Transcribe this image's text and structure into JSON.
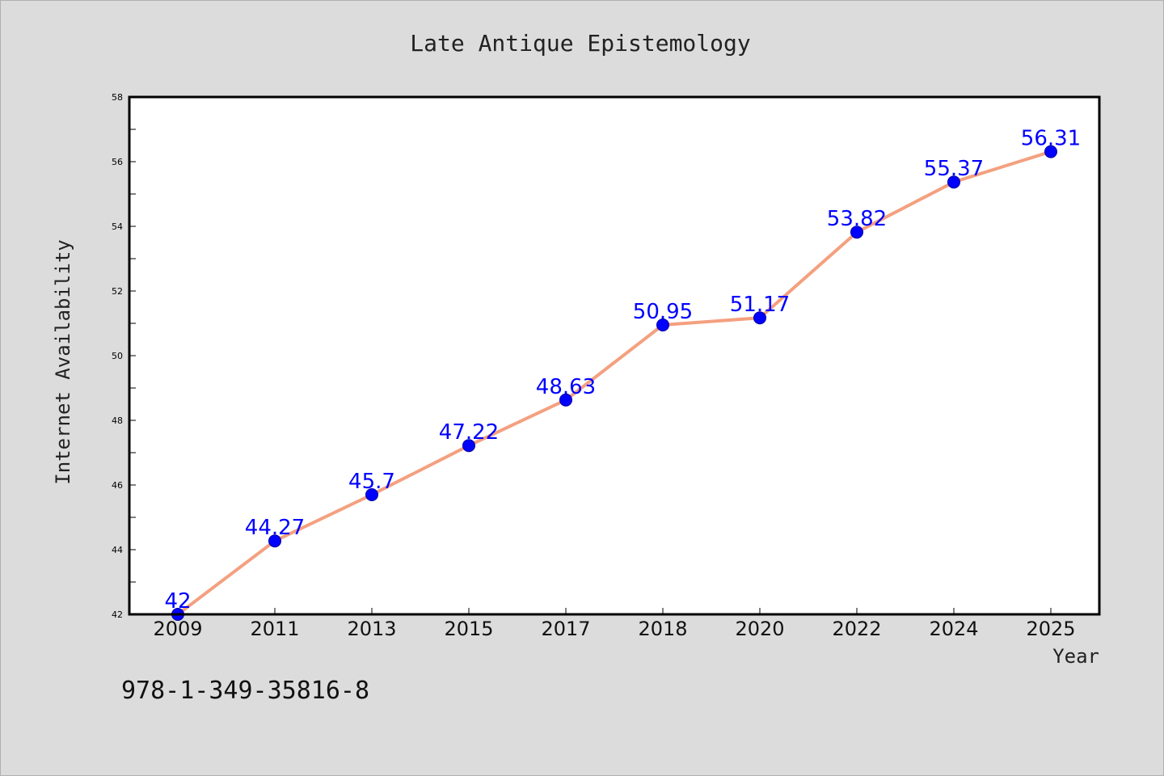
{
  "colors": {
    "background": "#dcdcdc",
    "plot_area": "#ffffff",
    "line": "#f4a07f",
    "marker": "#0000ff",
    "data_label": "#0000ff",
    "text": "#222222"
  },
  "footer": {
    "isbn": "978-1-349-35816-8"
  },
  "chart_data": {
    "type": "line",
    "title": "Late Antique Epistemology",
    "xlabel": "Year",
    "ylabel": "Internet Availability",
    "categories": [
      "2009",
      "2011",
      "2013",
      "2015",
      "2017",
      "2018",
      "2020",
      "2022",
      "2024",
      "2025"
    ],
    "values": [
      42,
      44.27,
      45.7,
      47.22,
      48.63,
      50.95,
      51.17,
      53.82,
      55.37,
      56.31
    ],
    "data_labels": [
      "42",
      "44.27",
      "45.7",
      "47.22",
      "48.63",
      "50.95",
      "51.17",
      "53.82",
      "55.37",
      "56.31"
    ],
    "ylim": [
      42,
      58
    ],
    "yticks": [
      42,
      44,
      46,
      48,
      50,
      52,
      54,
      56,
      58
    ],
    "grid": false,
    "legend": "none",
    "markers": "circle"
  }
}
